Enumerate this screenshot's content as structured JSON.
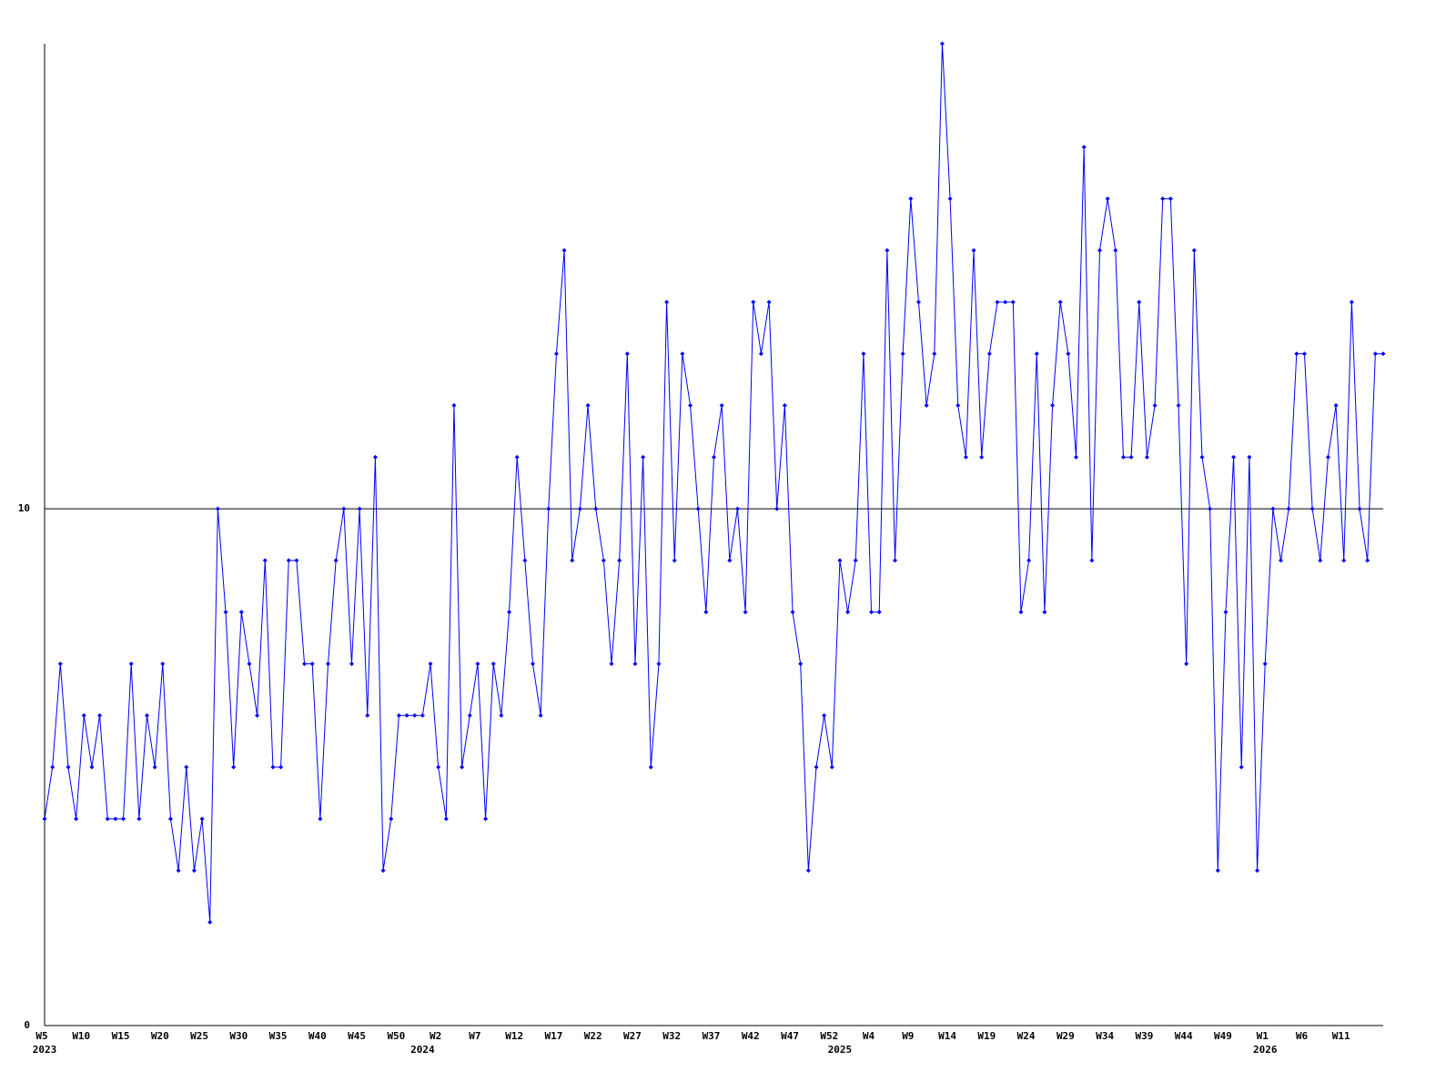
{
  "chart_data": {
    "type": "line",
    "categories": [
      "W5",
      null,
      null,
      null,
      null,
      "W10",
      null,
      null,
      null,
      null,
      "W15",
      null,
      null,
      null,
      null,
      "W20",
      null,
      null,
      null,
      null,
      "W25",
      null,
      null,
      null,
      null,
      "W30",
      null,
      null,
      null,
      null,
      "W35",
      null,
      null,
      null,
      null,
      "W40",
      null,
      null,
      null,
      null,
      "W45",
      null,
      null,
      null,
      null,
      "W50",
      null,
      null,
      null,
      null,
      "W2",
      null,
      null,
      null,
      null,
      "W7",
      null,
      null,
      null,
      null,
      "W12",
      null,
      null,
      null,
      null,
      "W17",
      null,
      null,
      null,
      null,
      "W22",
      null,
      null,
      null,
      null,
      "W27",
      null,
      null,
      null,
      null,
      "W32",
      null,
      null,
      null,
      null,
      "W37",
      null,
      null,
      null,
      null,
      "W42",
      null,
      null,
      null,
      null,
      "W47",
      null,
      null,
      null,
      null,
      "W52",
      null,
      null,
      null,
      null,
      "W4",
      null,
      null,
      null,
      null,
      "W9",
      null,
      null,
      null,
      null,
      "W14",
      null,
      null,
      null,
      null,
      "W19",
      null,
      null,
      null,
      null,
      "W24",
      null,
      null,
      null,
      null,
      "W29",
      null,
      null,
      null,
      null,
      "W34",
      null,
      null,
      null,
      null,
      "W39",
      null,
      null,
      null,
      null,
      "W44",
      null,
      null,
      null,
      null,
      "W49",
      null,
      null,
      null,
      null,
      "W1",
      null,
      null,
      null,
      null,
      "W6",
      null,
      null,
      null,
      null,
      "W11",
      null,
      null,
      null,
      null,
      null
    ],
    "year_labels": [
      "2023",
      null,
      null,
      null,
      null,
      null,
      null,
      null,
      null,
      null,
      null,
      null,
      null,
      null,
      null,
      null,
      null,
      null,
      null,
      null,
      null,
      null,
      null,
      null,
      null,
      null,
      null,
      null,
      null,
      null,
      null,
      null,
      null,
      null,
      null,
      null,
      null,
      null,
      null,
      null,
      null,
      null,
      null,
      null,
      null,
      null,
      null,
      null,
      "2024",
      null,
      null,
      null,
      null,
      null,
      null,
      null,
      null,
      null,
      null,
      null,
      null,
      null,
      null,
      null,
      null,
      null,
      null,
      null,
      null,
      null,
      null,
      null,
      null,
      null,
      null,
      null,
      null,
      null,
      null,
      null,
      null,
      null,
      null,
      null,
      null,
      null,
      null,
      null,
      null,
      null,
      null,
      null,
      null,
      null,
      null,
      null,
      null,
      null,
      null,
      null,
      null,
      "2025",
      null,
      null,
      null,
      null,
      null,
      null,
      null,
      null,
      null,
      null,
      null,
      null,
      null,
      null,
      null,
      null,
      null,
      null,
      null,
      null,
      null,
      null,
      null,
      null,
      null,
      null,
      null,
      null,
      null,
      null,
      null,
      null,
      null,
      null,
      null,
      null,
      null,
      null,
      null,
      null,
      null,
      null,
      null,
      null,
      null,
      null,
      null,
      null,
      null,
      null,
      null,
      null,
      null,
      "2026",
      null,
      null,
      null,
      null,
      null,
      null,
      null,
      null,
      null,
      null,
      null,
      null,
      null,
      null,
      null
    ],
    "values": [
      4,
      5,
      7,
      5,
      4,
      6,
      5,
      6,
      4,
      4,
      4,
      7,
      4,
      6,
      5,
      7,
      4,
      3,
      5,
      3,
      4,
      2,
      10,
      8,
      5,
      8,
      7,
      6,
      9,
      5,
      5,
      9,
      9,
      7,
      7,
      4,
      7,
      9,
      10,
      7,
      10,
      6,
      11,
      3,
      4,
      6,
      6,
      6,
      6,
      7,
      5,
      4,
      12,
      5,
      6,
      7,
      4,
      7,
      6,
      8,
      11,
      9,
      7,
      6,
      10,
      13,
      15,
      9,
      10,
      12,
      10,
      9,
      7,
      9,
      13,
      7,
      11,
      5,
      7,
      14,
      9,
      13,
      12,
      10,
      8,
      11,
      12,
      9,
      10,
      8,
      14,
      13,
      14,
      10,
      12,
      8,
      7,
      3,
      5,
      6,
      5,
      9,
      8,
      9,
      13,
      8,
      8,
      15,
      9,
      13,
      16,
      14,
      12,
      13,
      19,
      16,
      12,
      11,
      15,
      11,
      13,
      14,
      14,
      14,
      8,
      9,
      13,
      8,
      12,
      14,
      13,
      11,
      17,
      9,
      15,
      16,
      15,
      11,
      11,
      14,
      11,
      12,
      16,
      16,
      12,
      7,
      15,
      11,
      10,
      3,
      8,
      11,
      5,
      11,
      3,
      7,
      10,
      9,
      10,
      13,
      13,
      10,
      9,
      11,
      12,
      9,
      14,
      10,
      9,
      13,
      13
    ],
    "color": "#0000ff",
    "ylim": [
      0,
      19
    ],
    "yticks": [
      0,
      10
    ],
    "grid": true
  }
}
